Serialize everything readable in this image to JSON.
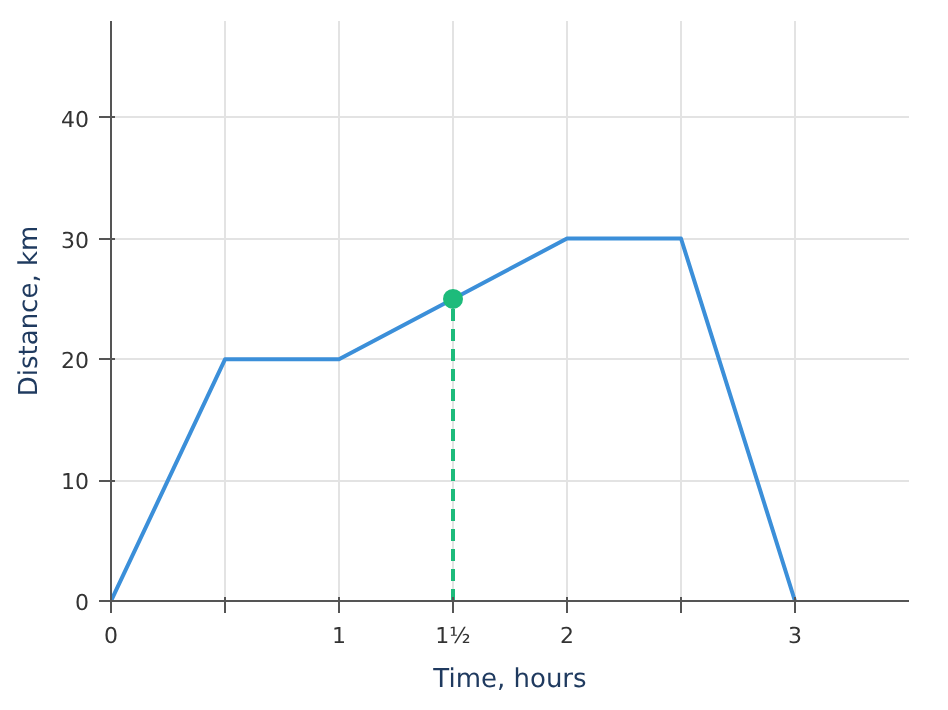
{
  "chart_data": {
    "type": "line",
    "xlabel": "Time, hours",
    "ylabel": "Distance, km",
    "x": [
      0,
      0.5,
      1,
      1.5,
      2,
      2.5,
      3
    ],
    "series": [
      {
        "color": "#3b8fd9",
        "values": [
          0,
          20,
          20,
          25,
          30,
          30,
          0
        ]
      },
      {
        "type": "lollipop",
        "x": [
          1.5
        ],
        "color": "#1dbb7b",
        "values": [
          25
        ],
        "marker": "circle",
        "line_style": "dashed"
      }
    ],
    "xlim": [
      0,
      3.5
    ],
    "ylim": [
      0,
      48
    ],
    "xticks": [
      0,
      {
        "value": 0.5,
        "label": null
      },
      1,
      {
        "value": 1.5,
        "label": "1½"
      },
      2,
      {
        "value": 2.5,
        "label": null
      },
      3
    ],
    "yticks": [
      0,
      10,
      20,
      30,
      40
    ],
    "grid": true
  }
}
